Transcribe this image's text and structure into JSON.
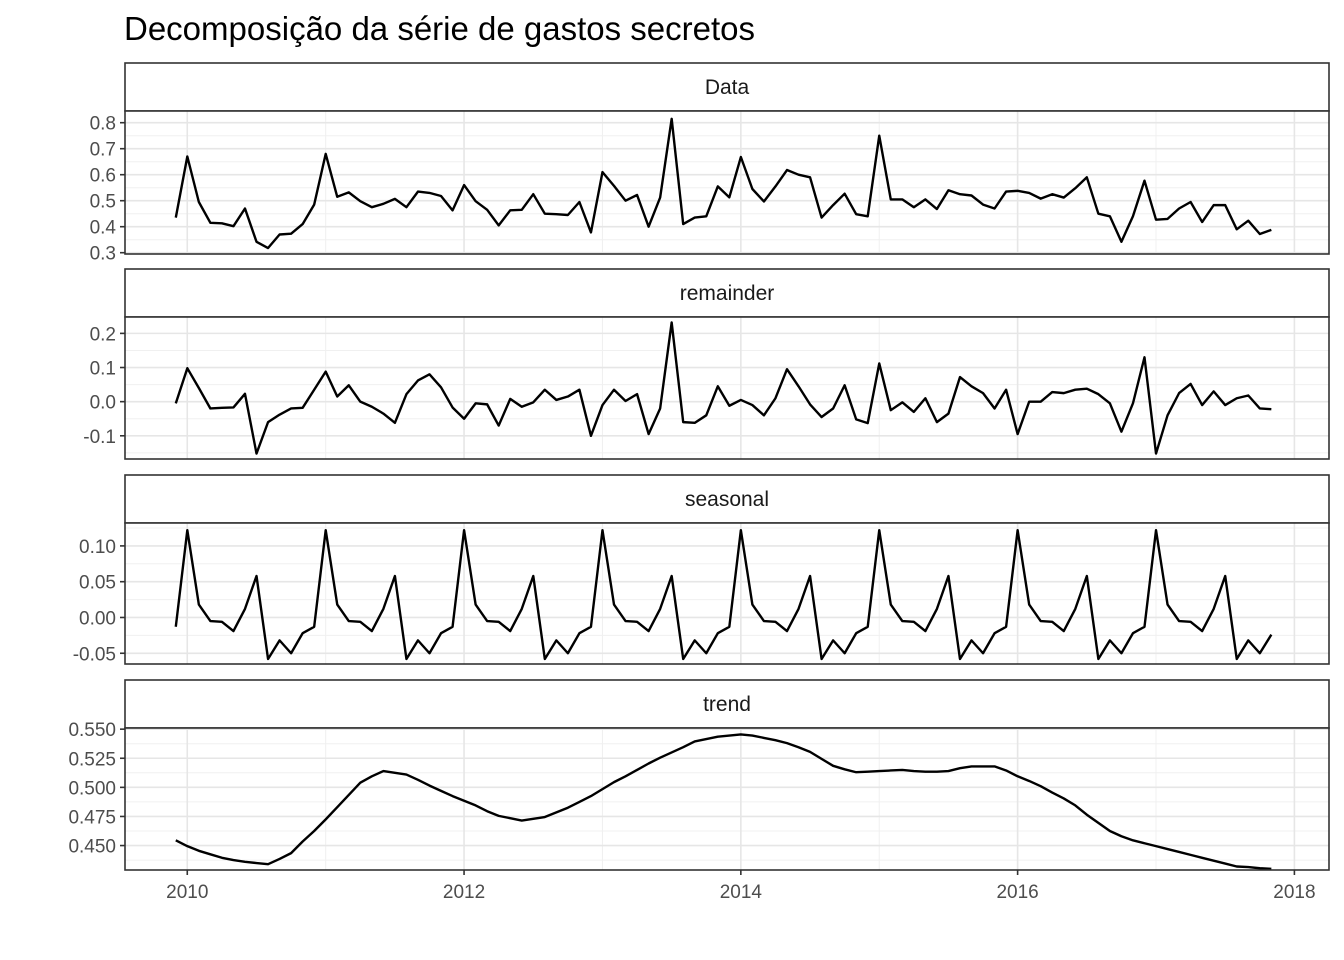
{
  "chart_data": {
    "type": "line",
    "title": "Decomposição da série de gastos secretos",
    "xlabel": "",
    "ylabel": "",
    "grid": true,
    "x_ticks": [
      "2010",
      "2012",
      "2014",
      "2016",
      "2018"
    ],
    "x_tick_values": [
      2010,
      2012,
      2014,
      2016,
      2018
    ],
    "xlim": [
      2009.55,
      2018.25
    ],
    "time": {
      "start": 2009.917,
      "step": 0.08333,
      "count": 96
    },
    "line_color": "#000000",
    "panels": [
      {
        "name": "Data",
        "ylim": [
          0.295,
          0.845
        ],
        "y_ticks": [
          0.3,
          0.4,
          0.5,
          0.6,
          0.7,
          0.8
        ],
        "y_tick_labels": [
          "0.3",
          "0.4",
          "0.5",
          "0.6",
          "0.7",
          "0.8"
        ],
        "values": [
          0.435,
          0.67,
          0.495,
          0.415,
          0.413,
          0.402,
          0.47,
          0.342,
          0.318,
          0.37,
          0.373,
          0.41,
          0.485,
          0.68,
          0.515,
          0.532,
          0.498,
          0.475,
          0.488,
          0.507,
          0.475,
          0.535,
          0.53,
          0.518,
          0.463,
          0.56,
          0.498,
          0.465,
          0.405,
          0.463,
          0.465,
          0.525,
          0.45,
          0.448,
          0.445,
          0.495,
          0.378,
          0.61,
          0.557,
          0.5,
          0.522,
          0.4,
          0.512,
          0.815,
          0.41,
          0.435,
          0.44,
          0.555,
          0.513,
          0.668,
          0.545,
          0.497,
          0.555,
          0.618,
          0.6,
          0.59,
          0.435,
          0.483,
          0.527,
          0.448,
          0.44,
          0.75,
          0.505,
          0.505,
          0.475,
          0.505,
          0.468,
          0.54,
          0.525,
          0.52,
          0.485,
          0.47,
          0.535,
          0.538,
          0.53,
          0.508,
          0.525,
          0.512,
          0.548,
          0.59,
          0.45,
          0.44,
          0.342,
          0.44,
          0.577,
          0.427,
          0.43,
          0.47,
          0.495,
          0.418,
          0.483,
          0.483,
          0.39,
          0.423,
          0.372,
          0.388
        ]
      },
      {
        "name": "remainder",
        "ylim": [
          -0.168,
          0.248
        ],
        "y_ticks": [
          -0.1,
          0.0,
          0.1,
          0.2
        ],
        "y_tick_labels": [
          "-0.1",
          "0.0",
          "0.1",
          "0.2"
        ],
        "values": [
          -0.005,
          0.098,
          0.04,
          -0.02,
          -0.018,
          -0.017,
          0.023,
          -0.152,
          -0.06,
          -0.038,
          -0.02,
          -0.018,
          0.035,
          0.088,
          0.015,
          0.048,
          0.0,
          -0.015,
          -0.035,
          -0.062,
          0.022,
          0.062,
          0.08,
          0.042,
          -0.017,
          -0.05,
          -0.005,
          -0.008,
          -0.07,
          0.008,
          -0.015,
          -0.002,
          0.035,
          0.005,
          0.015,
          0.035,
          -0.1,
          -0.01,
          0.035,
          0.002,
          0.022,
          -0.095,
          -0.02,
          0.232,
          -0.06,
          -0.062,
          -0.04,
          0.045,
          -0.012,
          0.005,
          -0.01,
          -0.04,
          0.01,
          0.095,
          0.045,
          -0.008,
          -0.045,
          -0.02,
          0.048,
          -0.052,
          -0.063,
          0.112,
          -0.025,
          -0.002,
          -0.03,
          0.01,
          -0.06,
          -0.035,
          0.072,
          0.045,
          0.025,
          -0.02,
          0.035,
          -0.095,
          0.0,
          0.0,
          0.028,
          0.025,
          0.035,
          0.038,
          0.022,
          -0.005,
          -0.088,
          -0.005,
          0.13,
          -0.152,
          -0.04,
          0.025,
          0.052,
          -0.01,
          0.03,
          -0.01,
          0.01,
          0.018,
          -0.02,
          -0.022
        ]
      },
      {
        "name": "seasonal",
        "ylim": [
          -0.065,
          0.132
        ],
        "y_ticks": [
          -0.05,
          0.0,
          0.05,
          0.1
        ],
        "y_tick_labels": [
          "-0.05",
          "0.00",
          "0.05",
          "0.10"
        ],
        "values": [
          -0.013,
          0.122,
          0.018,
          -0.005,
          -0.006,
          -0.019,
          0.012,
          0.058,
          -0.058,
          -0.032,
          -0.05,
          -0.022,
          -0.013,
          0.122,
          0.018,
          -0.005,
          -0.006,
          -0.019,
          0.012,
          0.058,
          -0.058,
          -0.032,
          -0.05,
          -0.022,
          -0.013,
          0.122,
          0.018,
          -0.005,
          -0.006,
          -0.019,
          0.012,
          0.058,
          -0.058,
          -0.032,
          -0.05,
          -0.022,
          -0.013,
          0.122,
          0.018,
          -0.005,
          -0.006,
          -0.019,
          0.012,
          0.058,
          -0.058,
          -0.032,
          -0.05,
          -0.022,
          -0.013,
          0.122,
          0.018,
          -0.005,
          -0.006,
          -0.019,
          0.012,
          0.058,
          -0.058,
          -0.032,
          -0.05,
          -0.022,
          -0.013,
          0.122,
          0.018,
          -0.005,
          -0.006,
          -0.019,
          0.012,
          0.058,
          -0.058,
          -0.032,
          -0.05,
          -0.022,
          -0.013,
          0.122,
          0.018,
          -0.005,
          -0.006,
          -0.019,
          0.012,
          0.058,
          -0.058,
          -0.032,
          -0.05,
          -0.022,
          -0.013,
          0.122,
          0.018,
          -0.005,
          -0.006,
          -0.019,
          0.012,
          0.058,
          -0.058,
          -0.032,
          -0.05,
          -0.024
        ]
      },
      {
        "name": "trend",
        "ylim": [
          0.429,
          0.551
        ],
        "y_ticks": [
          0.45,
          0.475,
          0.5,
          0.525,
          0.55
        ],
        "y_tick_labels": [
          "0.450",
          "0.475",
          "0.500",
          "0.525",
          "0.550"
        ],
        "values": [
          0.4545,
          0.4495,
          0.4455,
          0.4425,
          0.4395,
          0.4375,
          0.436,
          0.435,
          0.434,
          0.4385,
          0.4435,
          0.4535,
          0.4625,
          0.4725,
          0.483,
          0.4935,
          0.504,
          0.5095,
          0.514,
          0.5125,
          0.511,
          0.5065,
          0.5015,
          0.497,
          0.4925,
          0.4885,
          0.4845,
          0.4795,
          0.4755,
          0.4735,
          0.4715,
          0.473,
          0.4745,
          0.4785,
          0.4825,
          0.4875,
          0.4925,
          0.4985,
          0.5045,
          0.5095,
          0.515,
          0.5205,
          0.5255,
          0.53,
          0.5345,
          0.5395,
          0.5415,
          0.5435,
          0.5445,
          0.5455,
          0.5445,
          0.5425,
          0.5405,
          0.538,
          0.5345,
          0.5305,
          0.5245,
          0.5185,
          0.5155,
          0.513,
          0.5135,
          0.514,
          0.5145,
          0.515,
          0.514,
          0.5135,
          0.5135,
          0.514,
          0.5165,
          0.518,
          0.518,
          0.518,
          0.5145,
          0.5095,
          0.5055,
          0.501,
          0.4955,
          0.4905,
          0.4845,
          0.4765,
          0.4695,
          0.4625,
          0.458,
          0.4545,
          0.452,
          0.4495,
          0.447,
          0.4445,
          0.442,
          0.4395,
          0.437,
          0.4345,
          0.432,
          0.4315,
          0.4305,
          0.43
        ]
      }
    ]
  }
}
